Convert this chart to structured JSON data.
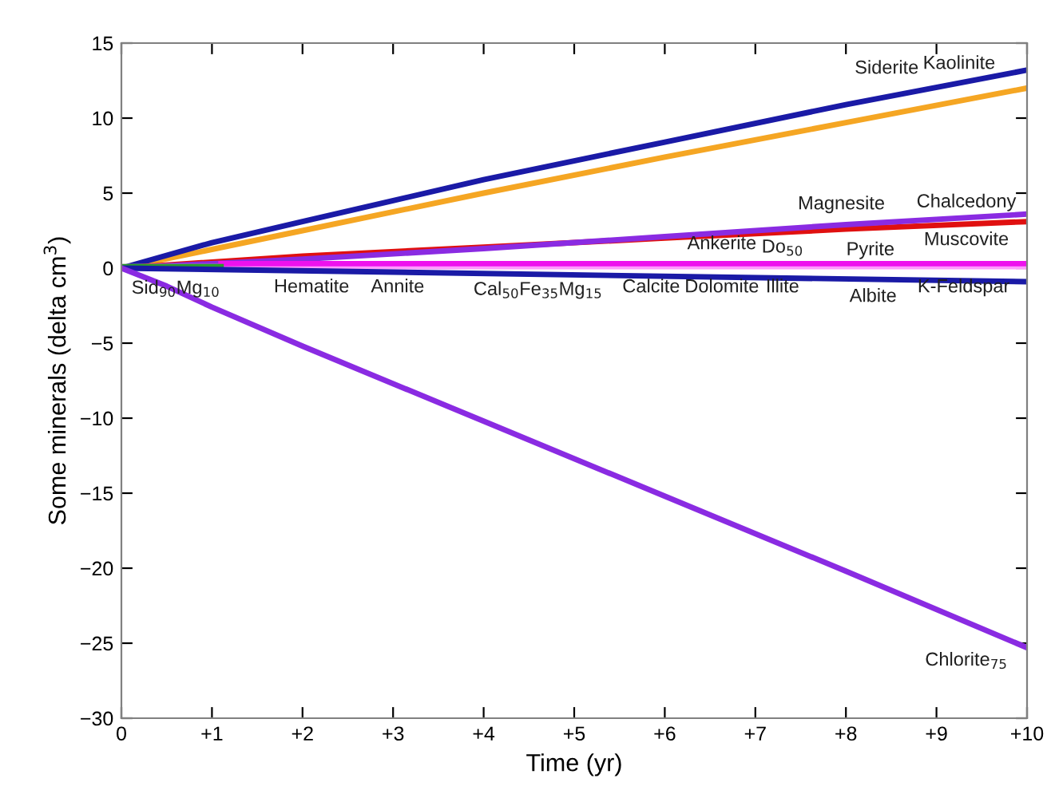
{
  "chart_data": {
    "type": "line",
    "xlabel": "Time (yr)",
    "ylabel": "Some minerals (delta cm$^{3}$)",
    "xlim": [
      0,
      10
    ],
    "ylim": [
      -30,
      15
    ],
    "xticks": [
      0,
      {
        "value": 1,
        "label": "+1"
      },
      {
        "value": 2,
        "label": "+2"
      },
      {
        "value": 3,
        "label": "+3"
      },
      {
        "value": 4,
        "label": "+4"
      },
      {
        "value": 5,
        "label": "+5"
      },
      {
        "value": 6,
        "label": "+6"
      },
      {
        "value": 7,
        "label": "+7"
      },
      {
        "value": 8,
        "label": "+8"
      },
      {
        "value": 9,
        "label": "+9"
      },
      {
        "value": 10,
        "label": "+10"
      }
    ],
    "yticks": [
      -30,
      -25,
      -20,
      -15,
      -10,
      -5,
      0,
      5,
      10,
      15
    ],
    "grid": false,
    "line_style": "solid",
    "marker": "none",
    "series": [
      {
        "color": "#f5a623",
        "x": [
          0,
          2,
          4,
          6,
          8,
          10
        ],
        "values": [
          0,
          2.5,
          5.0,
          7.4,
          9.7,
          12.0
        ]
      },
      {
        "color": "#1a1aa6",
        "x": [
          0,
          1,
          2,
          4,
          6,
          8,
          10
        ],
        "values": [
          0,
          1.7,
          3.1,
          5.9,
          8.4,
          10.9,
          13.2
        ]
      },
      {
        "color": "#e01010",
        "x": [
          0,
          2,
          4,
          6,
          8,
          10
        ],
        "values": [
          0,
          0.8,
          1.4,
          2.0,
          2.6,
          3.1
        ]
      },
      {
        "color": "#8a2be2",
        "x": [
          0,
          2,
          4,
          6,
          8,
          10
        ],
        "values": [
          0,
          0.6,
          1.3,
          2.1,
          2.9,
          3.6
        ]
      },
      {
        "color": "#ff99ff",
        "x": [
          0,
          10
        ],
        "values": [
          0.1,
          0.1
        ]
      },
      {
        "color": "#ee11ee",
        "x": [
          1.1,
          10
        ],
        "values": [
          0.3,
          0.3
        ]
      },
      {
        "color": "#2a9d2a",
        "x": [
          0,
          1.1
        ],
        "values": [
          0.1,
          0.1
        ]
      },
      {
        "color": "#1a1aa6",
        "x": [
          0,
          10
        ],
        "values": [
          0,
          -0.9
        ]
      },
      {
        "color": "#8a2be2",
        "x": [
          0,
          0.5,
          1,
          2,
          4,
          6,
          8,
          10
        ],
        "values": [
          0,
          -1.2,
          -2.6,
          -5.2,
          -10.2,
          -15.2,
          -20.2,
          -25.3
        ]
      }
    ],
    "annotations": [
      "Siderite",
      "Kaolinite",
      "Magnesite",
      "Chalcedony",
      "Ankerite",
      "Do$_{50}$",
      "Pyrite",
      "Muscovite",
      "Sid$_{90}$Mg$_{10}$",
      "Hematite",
      "Annite",
      "Cal$_{50}$Fe$_{35}$Mg$_{15}$",
      "Calcite",
      "Dolomite",
      "Illite",
      "Albite",
      "K-Feldspar",
      "Chlorite$_{75}$"
    ]
  }
}
